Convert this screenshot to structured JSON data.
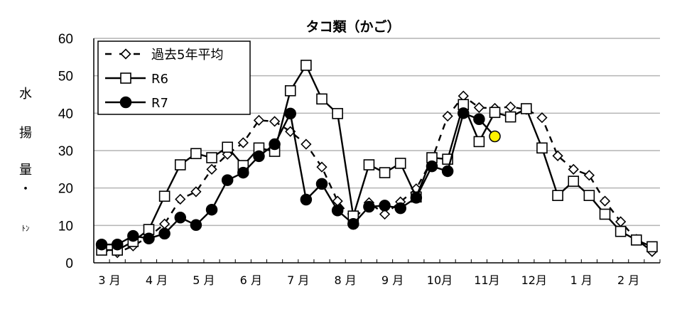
{
  "chart_data": {
    "type": "line",
    "title": "タコ類（かご）",
    "xlabel": "",
    "ylabel": "水揚量・ﾄﾝ",
    "ylabel_chars": [
      "水",
      "揚",
      "量",
      "・",
      "ﾄﾝ"
    ],
    "ylim": [
      0,
      60
    ],
    "yticks": [
      0,
      10,
      20,
      30,
      40,
      50,
      60
    ],
    "grid": true,
    "legend_position": "upper-left",
    "x_month_labels": [
      "3 月",
      "4 月",
      "5 月",
      "6 月",
      "7 月",
      "8 月",
      "9 月",
      "10月",
      "11月",
      "12月",
      "1 月",
      "2 月"
    ],
    "x_periods_per_month": 3,
    "x": [
      "3月上旬",
      "3月中旬",
      "3月下旬",
      "4月上旬",
      "4月中旬",
      "4月下旬",
      "5月上旬",
      "5月中旬",
      "5月下旬",
      "6月上旬",
      "6月中旬",
      "6月下旬",
      "7月上旬",
      "7月中旬",
      "7月下旬",
      "8月上旬",
      "8月中旬",
      "8月下旬",
      "9月上旬",
      "9月中旬",
      "9月下旬",
      "10月上旬",
      "10月中旬",
      "10月下旬",
      "11月上旬",
      "11月中旬",
      "11月下旬",
      "12月上旬",
      "12月中旬",
      "12月下旬",
      "1月上旬",
      "1月中旬",
      "1月下旬",
      "2月上旬",
      "2月中旬",
      "2月下旬"
    ],
    "series": [
      {
        "name": "過去5年平均",
        "style": "dashed",
        "marker": "diamond-open",
        "color": "#000000",
        "values": [
          3.5,
          2.7,
          4.5,
          7.0,
          10.4,
          17.0,
          19.0,
          25.0,
          29.0,
          32.1,
          38.1,
          37.8,
          35.1,
          31.7,
          25.6,
          16.5,
          11.5,
          16.1,
          13.0,
          16.3,
          19.8,
          27.5,
          39.2,
          44.6,
          41.5,
          41.3,
          41.7,
          41.0,
          38.8,
          28.6,
          25.0,
          23.4,
          16.5,
          11.0,
          6.3,
          3.0
        ]
      },
      {
        "name": "R6",
        "style": "solid",
        "marker": "square-open",
        "color": "#000000",
        "values": [
          3.4,
          3.4,
          5.7,
          8.9,
          17.8,
          26.2,
          29.2,
          28.1,
          30.9,
          26.0,
          30.7,
          29.8,
          46.0,
          52.8,
          43.8,
          39.9,
          12.5,
          26.2,
          24.1,
          26.6,
          17.6,
          28.1,
          27.7,
          42.3,
          32.4,
          40.2,
          39.0,
          41.2,
          30.7,
          18.0,
          21.8,
          18.0,
          13.0,
          8.4,
          6.1,
          4.3
        ]
      },
      {
        "name": "R7",
        "style": "solid",
        "marker": "circle-filled",
        "color": "#000000",
        "highlight_last_color": "#FFF200",
        "values": [
          4.9,
          4.9,
          7.2,
          6.5,
          7.8,
          12.1,
          10.1,
          14.2,
          22.1,
          24.1,
          28.5,
          31.7,
          39.9,
          16.9,
          21.1,
          14.0,
          10.4,
          15.0,
          15.3,
          14.6,
          17.4,
          25.8,
          24.5,
          40.0,
          38.4,
          33.8
        ]
      }
    ]
  },
  "colors": {
    "gridline": "#b4b4b4",
    "axis": "#000000",
    "highlight": "#FFF200"
  }
}
